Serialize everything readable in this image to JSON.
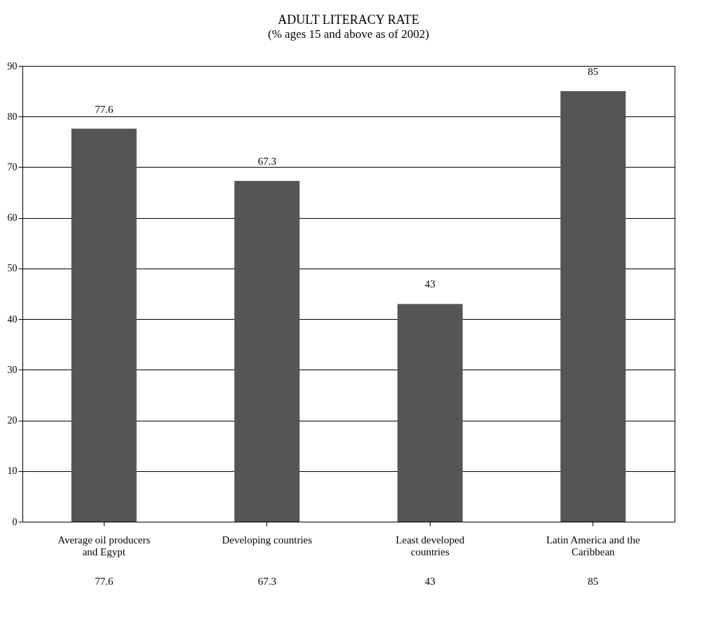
{
  "chart_data": {
    "type": "bar",
    "title": "ADULT LITERACY RATE",
    "subtitle": "(% ages 15 and above as of 2002)",
    "categories": [
      "Average oil producers and Egypt",
      "Developing countries",
      "Least developed countries",
      "Latin America and the Caribbean"
    ],
    "values": [
      77.6,
      67.3,
      43,
      85
    ],
    "color": "#555555",
    "data_labels": true,
    "ylim": [
      0,
      90
    ],
    "yticks": [
      0,
      10,
      20,
      30,
      40,
      50,
      60,
      70,
      80,
      90
    ],
    "grid": "y",
    "annotations": [
      "77.6",
      "67.3",
      "43",
      "85"
    ]
  }
}
